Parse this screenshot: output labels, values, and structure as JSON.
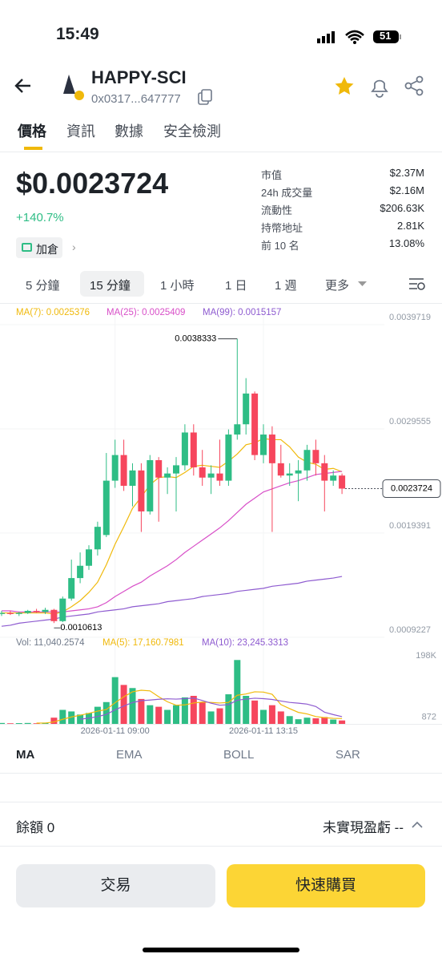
{
  "status_bar": {
    "time": "15:49",
    "battery": "51"
  },
  "header": {
    "title": "HAPPY-SCI",
    "address": "0x0317...647777"
  },
  "tabs": [
    "價格",
    "資訊",
    "數據",
    "安全檢測"
  ],
  "price": {
    "value": "$0.0023724",
    "change": "+140.7%",
    "position_button": "加倉"
  },
  "stats": [
    [
      "市值",
      "$2.37M"
    ],
    [
      "24h 成交量",
      "$2.16M"
    ],
    [
      "流動性",
      "$206.63K"
    ],
    [
      "持幣地址",
      "2.81K"
    ],
    [
      "前 10 名",
      "13.08%"
    ]
  ],
  "intervals": [
    "5 分鐘",
    "15 分鐘",
    "1 小時",
    "1 日",
    "1 週",
    "更多"
  ],
  "chart_data": {
    "type": "candlestick",
    "categories": [
      null,
      null,
      null,
      null,
      null,
      null,
      null,
      null,
      null,
      null,
      null,
      null,
      null,
      "2026-01-11 09:00",
      null,
      null,
      null,
      null,
      null,
      null,
      null,
      null,
      null,
      null,
      null,
      null,
      null,
      null,
      null,
      null,
      "2026-01-11 13:15",
      null,
      null,
      null,
      null,
      null,
      null,
      null,
      null,
      null
    ],
    "open": [
      0.00115,
      0.00116,
      0.00115,
      0.00116,
      0.00118,
      0.00117,
      0.00119,
      0.00108,
      0.0013,
      0.0015,
      0.00162,
      0.00178,
      0.00192,
      0.00245,
      0.0027,
      0.0024,
      0.00255,
      0.00215,
      0.00265,
      0.00248,
      0.00252,
      0.0026,
      0.00292,
      0.00258,
      0.00248,
      0.00252,
      0.00245,
      0.0029,
      0.003,
      0.0033,
      0.0027,
      0.0029,
      0.00262,
      0.0025,
      0.00252,
      0.00255,
      0.00275,
      0.00262,
      0.00245,
      0.0025
    ],
    "high": [
      0.00118,
      0.00118,
      0.00117,
      0.00119,
      0.0012,
      0.00121,
      0.0012,
      0.00132,
      0.00168,
      0.00175,
      0.00182,
      0.00205,
      0.00272,
      0.00285,
      0.00285,
      0.00262,
      0.00262,
      0.0027,
      0.00268,
      0.00258,
      0.00268,
      0.003,
      0.003,
      0.00275,
      0.0026,
      0.00285,
      0.00295,
      0.0038333,
      0.00345,
      0.00332,
      0.003,
      0.00298,
      0.0028,
      0.00262,
      0.00265,
      0.0028,
      0.00285,
      0.0027,
      0.00255,
      0.00252
    ],
    "low": [
      0.00113,
      0.00114,
      0.00113,
      0.00115,
      0.00116,
      0.00115,
      0.0010613,
      0.00107,
      0.00128,
      0.00145,
      0.00158,
      0.00172,
      0.0019,
      0.00238,
      0.00235,
      0.0022,
      0.00195,
      0.00212,
      0.00205,
      0.00232,
      0.00215,
      0.00255,
      0.0025,
      0.0024,
      0.00232,
      0.0024,
      0.0024,
      0.00285,
      0.0029,
      0.00265,
      0.00262,
      0.00195,
      0.00248,
      0.0024,
      0.00225,
      0.00245,
      0.0025,
      0.00215,
      0.0024,
      0.00232
    ],
    "close": [
      0.00116,
      0.00115,
      0.00116,
      0.00118,
      0.00117,
      0.00119,
      0.00108,
      0.0013,
      0.0015,
      0.00162,
      0.00178,
      0.002,
      0.00245,
      0.0027,
      0.0024,
      0.00255,
      0.00215,
      0.00265,
      0.00248,
      0.00252,
      0.0026,
      0.00292,
      0.00258,
      0.00248,
      0.00252,
      0.00245,
      0.0029,
      0.003,
      0.0033,
      0.0027,
      0.0029,
      0.00262,
      0.0025,
      0.00252,
      0.00255,
      0.00275,
      0.00262,
      0.00245,
      0.0025,
      0.0023724
    ],
    "up_color": "#2ebd85",
    "down_color": "#f6465d",
    "ylim": [
      0.000883,
      0.004167
    ],
    "yticks": [
      0.0009227,
      0.0019391,
      0.0029555,
      0.0039719
    ],
    "series": [
      {
        "name": "MA(7): 0.0025376",
        "color": "#f0b90b",
        "values": [
          0.00116,
          0.00116,
          0.00116,
          0.00116,
          0.00116,
          0.00116,
          0.00115,
          0.00117,
          0.00122,
          0.00128,
          0.00136,
          0.00146,
          0.00163,
          0.00183,
          0.002,
          0.00218,
          0.00229,
          0.00241,
          0.00248,
          0.00249,
          0.00248,
          0.00253,
          0.00259,
          0.0026,
          0.00259,
          0.00258,
          0.00264,
          0.00271,
          0.0028,
          0.00282,
          0.00286,
          0.00285,
          0.00285,
          0.00278,
          0.00268,
          0.00263,
          0.00261,
          0.00256,
          0.00257,
          0.0025376
        ]
      },
      {
        "name": "MA(25): 0.0025409",
        "color": "#d84fc8",
        "values": [
          0.00118,
          0.00118,
          0.00117,
          0.00117,
          0.00117,
          0.00117,
          0.00117,
          0.00117,
          0.00118,
          0.00119,
          0.0012,
          0.00122,
          0.00126,
          0.00132,
          0.00137,
          0.00142,
          0.00146,
          0.00152,
          0.00157,
          0.00162,
          0.00168,
          0.00175,
          0.00181,
          0.00187,
          0.00193,
          0.00199,
          0.00206,
          0.00214,
          0.00222,
          0.00228,
          0.00234,
          0.00237,
          0.0024,
          0.00243,
          0.00245,
          0.00248,
          0.00251,
          0.00252,
          0.00253,
          0.0025409
        ]
      },
      {
        "name": "MA(99): 0.0015157",
        "color": "#8e5bd0",
        "values": [
          0.00103,
          0.00104,
          0.00106,
          0.00107,
          0.00108,
          0.00109,
          0.0011,
          0.00112,
          0.00113,
          0.00114,
          0.00115,
          0.00117,
          0.00118,
          0.00119,
          0.0012,
          0.00122,
          0.00123,
          0.00124,
          0.00125,
          0.00127,
          0.00128,
          0.00129,
          0.0013,
          0.00132,
          0.00133,
          0.00134,
          0.00135,
          0.00137,
          0.00138,
          0.00139,
          0.0014,
          0.00142,
          0.00143,
          0.00144,
          0.00145,
          0.00147,
          0.00148,
          0.00149,
          0.0015,
          0.0015157
        ]
      }
    ],
    "annotations": {
      "high": "0.0038333",
      "low": "0.0010613",
      "last": "0.0023724"
    },
    "volume": {
      "label": "Vol: 11,040.2574",
      "values": [
        3000,
        2000,
        2500,
        3000,
        2000,
        4000,
        20000,
        45000,
        40000,
        30000,
        35000,
        55000,
        70000,
        150000,
        125000,
        115000,
        80000,
        60000,
        55000,
        45000,
        60000,
        85000,
        90000,
        70000,
        40000,
        50000,
        95000,
        205000,
        90000,
        75000,
        45000,
        60000,
        40000,
        25000,
        15000,
        20000,
        18000,
        22000,
        14000,
        11040.2574
      ],
      "ylim": [
        0,
        198000
      ],
      "yticks": [
        872,
        {
          "value": 198000,
          "label": "198K"
        }
      ],
      "series": [
        {
          "name": "MA(5): 17,160.7981",
          "color": "#f0b90b",
          "values": [
            null,
            null,
            null,
            null,
            2500,
            2700,
            6300,
            14800,
            22200,
            27800,
            34000,
            41000,
            46000,
            68000,
            87000,
            103000,
            108000,
            106000,
            87000,
            71000,
            60000,
            61000,
            67000,
            70000,
            69000,
            67000,
            69000,
            92000,
            96000,
            103000,
            102000,
            95000,
            62000,
            49000,
            37000,
            32000,
            23600,
            20000,
            17800,
            17160.7981
          ]
        },
        {
          "name": "MA(10): 23,245.3313",
          "color": "#8e5bd0",
          "values": [
            null,
            null,
            null,
            null,
            null,
            null,
            null,
            null,
            null,
            15150,
            18350,
            23650,
            30400,
            45100,
            57400,
            68500,
            74500,
            76500,
            79000,
            80500,
            79500,
            81000,
            83000,
            75000,
            66500,
            60000,
            61500,
            76000,
            79500,
            82500,
            81000,
            78500,
            73500,
            69000,
            66500,
            63500,
            55800,
            37500,
            29900,
            23245.3313
          ]
        }
      ]
    }
  },
  "indicators": [
    "MA",
    "EMA",
    "BOLL",
    "SAR"
  ],
  "balance": {
    "label": "餘額 0",
    "pnl": "未實現盈虧 --"
  },
  "buttons": {
    "trade": "交易",
    "quick_buy": "快速購買"
  }
}
